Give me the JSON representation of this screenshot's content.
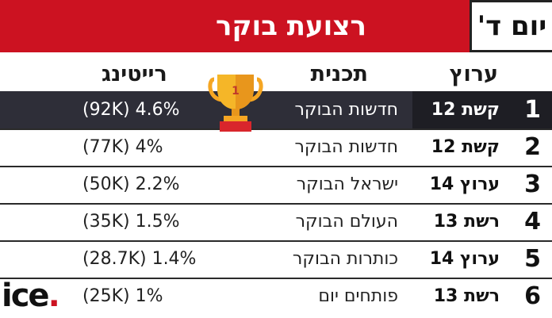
{
  "header": {
    "day": "יום ד'",
    "title": "רצועת בוקר"
  },
  "columns": {
    "channel": "ערוץ",
    "program": "תכנית",
    "rating": "רייטינג"
  },
  "rows": [
    {
      "rank": "1",
      "channel": "קשת 12",
      "program": "חדשות הבוקר",
      "rating": "(92K) 4.6%"
    },
    {
      "rank": "2",
      "channel": "קשת 12",
      "program": "חדשות הבוקר",
      "rating": "(77K) 4%"
    },
    {
      "rank": "3",
      "channel": "ערוץ 14",
      "program": "ישראל הבוקר",
      "rating": "(50K) 2.2%"
    },
    {
      "rank": "4",
      "channel": "רשת 13",
      "program": "העולם הבוקר",
      "rating": "(35K) 1.5%"
    },
    {
      "rank": "5",
      "channel": "ערוץ 14",
      "program": "כותרות הבוקר",
      "rating": "(28.7K) 1.4%"
    },
    {
      "rank": "6",
      "channel": "רשת 13",
      "program": "פותחים יום",
      "rating": "(25K) 1%"
    }
  ],
  "trophy": {
    "label": "1",
    "icon": "trophy-icon"
  },
  "logo": {
    "text": "ice",
    "dot": "."
  },
  "colors": {
    "brand_red": "#cc1221",
    "highlight_row": "#2e2e38",
    "trophy_gold": "#f5a623"
  }
}
